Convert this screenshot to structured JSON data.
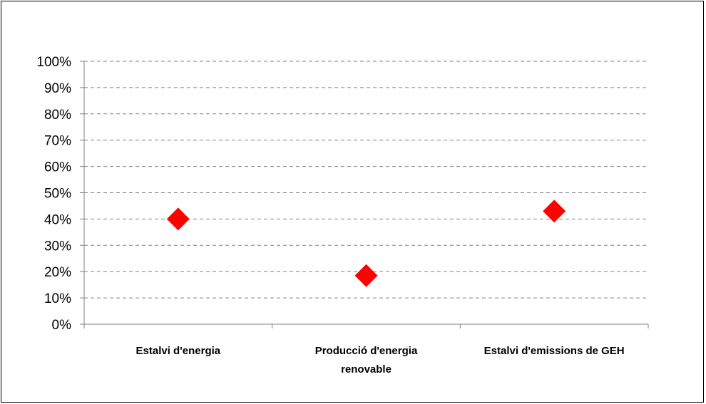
{
  "chart_data": {
    "type": "scatter",
    "title": "",
    "xlabel": "",
    "ylabel": "",
    "categories": [
      [
        "Estalvi d'energia"
      ],
      [
        "Producció d'energia",
        "renovable"
      ],
      [
        "Estalvi d'emissions de GEH"
      ]
    ],
    "series": [
      {
        "values": [
          40,
          18.5,
          43
        ]
      }
    ],
    "ylim": [
      0,
      100
    ],
    "ytick_step": 10,
    "y_format": "percent",
    "grid": true,
    "grid_style": "dashed",
    "legend": "none",
    "marker": "diamond",
    "marker_color": "#ff0000",
    "axis_color": "#808080",
    "grid_color": "#808080"
  }
}
